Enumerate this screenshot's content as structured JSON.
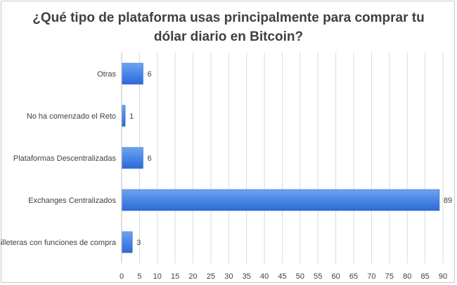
{
  "chart_data": {
    "type": "bar",
    "orientation": "horizontal",
    "title_lines": [
      "¿Qué tipo de plataforma usas principalmente para comprar tu",
      "dólar diario en Bitcoin?"
    ],
    "categories": [
      "Otras",
      "No ha comenzado el Reto",
      "Plataformas Descentralizadas",
      "Exchanges Centralizados",
      "Billeteras con funciones de compra"
    ],
    "values": [
      6,
      1,
      6,
      89,
      3
    ],
    "data_labels": [
      "6",
      "1",
      "6",
      "89",
      "3"
    ],
    "xlim": [
      0,
      90
    ],
    "x_ticks": [
      "0",
      "5",
      "10",
      "15",
      "20",
      "25",
      "30",
      "35",
      "40",
      "45",
      "50",
      "55",
      "60",
      "65",
      "70",
      "75",
      "80",
      "85",
      "90"
    ],
    "grid": true,
    "legend": "none",
    "bar_color": "#4a86e8"
  }
}
